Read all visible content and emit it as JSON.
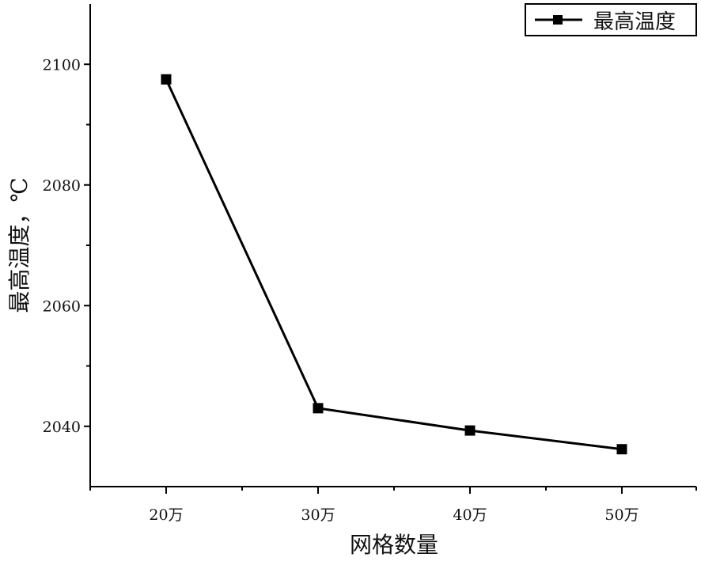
{
  "chart_data": {
    "type": "line",
    "categories": [
      "20万",
      "30万",
      "40万",
      "50万"
    ],
    "series": [
      {
        "name": "最高温度",
        "values": [
          2097.5,
          2043.0,
          2039.3,
          2036.2
        ]
      }
    ],
    "xlabel": "网格数量",
    "ylabel": "最高温度，℃",
    "ylim": [
      2030,
      2110
    ],
    "yticks": [
      2040,
      2060,
      2080,
      2100
    ],
    "grid": false,
    "legend_position": "top-right",
    "marker": "square",
    "line_color": "#000000"
  }
}
